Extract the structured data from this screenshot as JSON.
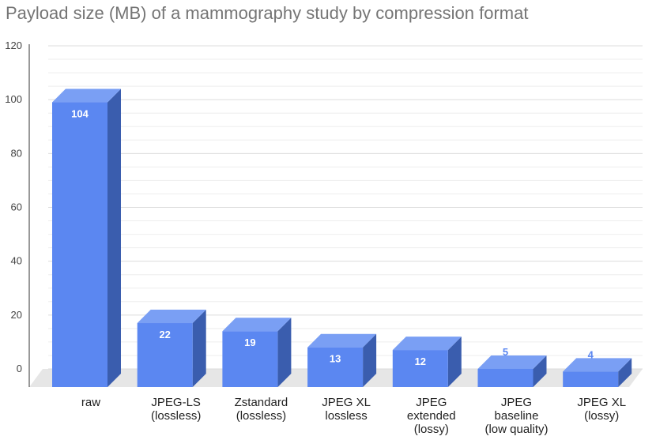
{
  "chart_data": {
    "type": "bar",
    "title": "Payload size (MB) of a mammography study by compression format",
    "xlabel": "",
    "ylabel": "",
    "ylim": [
      0,
      120
    ],
    "yticks": [
      "0",
      "20",
      "40",
      "60",
      "80",
      "100",
      "120"
    ],
    "categories": [
      [
        "raw"
      ],
      [
        "JPEG-LS",
        "(lossless)"
      ],
      [
        "Zstandard",
        "(lossless)"
      ],
      [
        "JPEG XL",
        "lossless"
      ],
      [
        "JPEG",
        "extended",
        "(lossy)"
      ],
      [
        "JPEG",
        "baseline",
        "(low quality)"
      ],
      [
        "JPEG XL",
        "(lossy)"
      ]
    ],
    "values": [
      104,
      22,
      19,
      13,
      12,
      5,
      4
    ],
    "data_labels": [
      "104",
      "22",
      "19",
      "13",
      "12",
      "5",
      "4"
    ],
    "grid": true,
    "legend": "none",
    "style": "3d-bars",
    "colors": {
      "bar_front": "#5b87f1",
      "bar_top": "#7a9ff4",
      "bar_side": "#3a5dae",
      "floor": "#e6e6e6",
      "grid": "#dcdcdc",
      "label_inside": "#ffffff",
      "label_outside": "#5b87f1"
    }
  }
}
